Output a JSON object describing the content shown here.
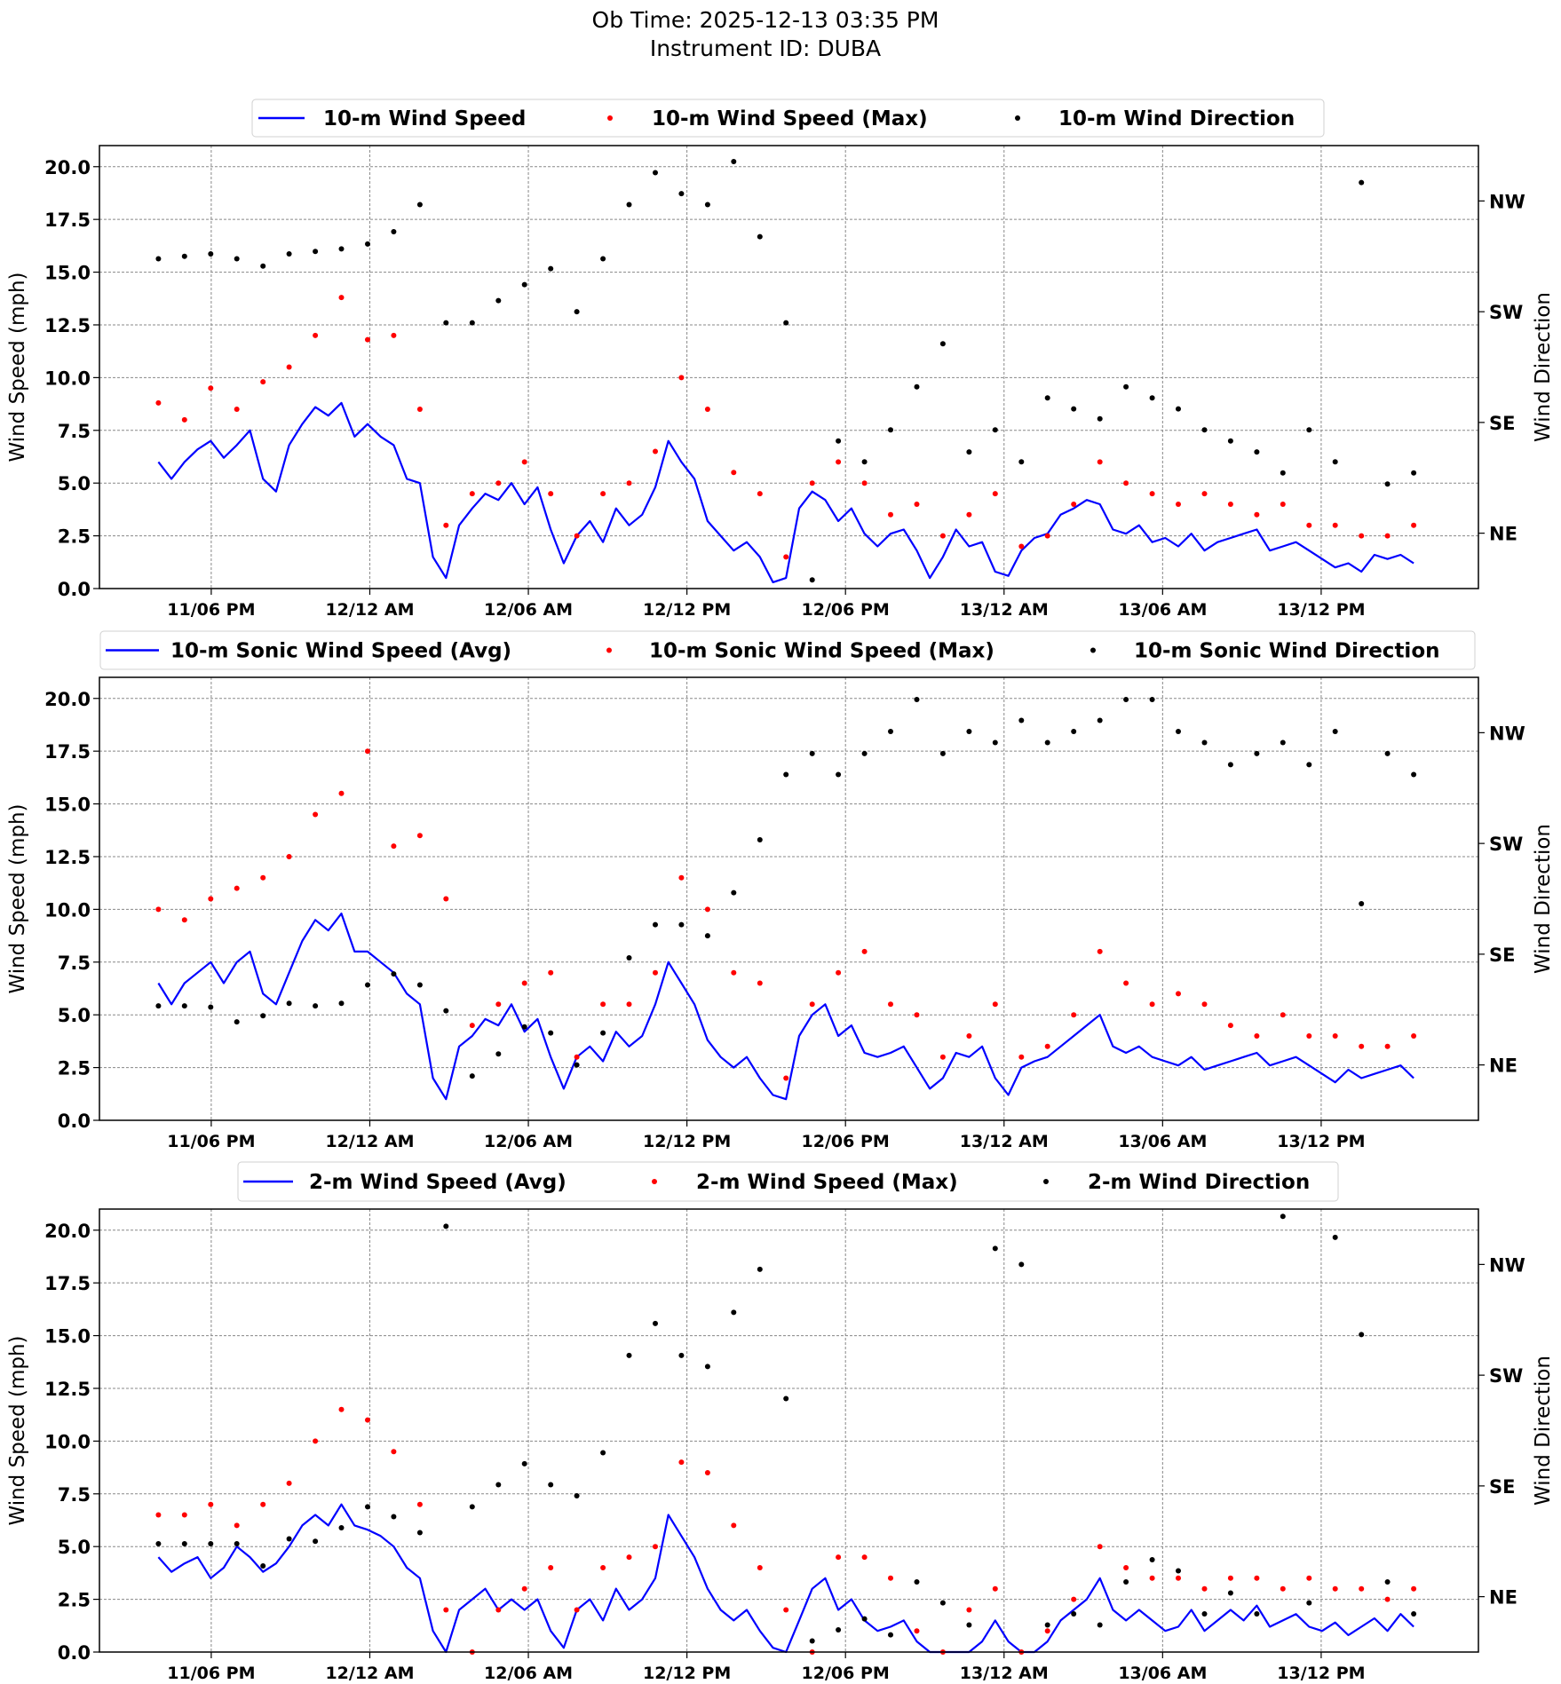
{
  "title": {
    "line1": "Ob Time: 2025-12-13 03:35 PM",
    "line2": "Instrument ID: DUBA"
  },
  "colors": {
    "avg": "#0000ff",
    "max": "#ff0000",
    "direction": "#000000",
    "grid": "#888888"
  },
  "chart_data": [
    {
      "type": "line+scatter",
      "ylabel": "Wind Speed (mph)",
      "y2label": "Wind Direction",
      "ylim": [
        0,
        21
      ],
      "y2lim": [
        0,
        360
      ],
      "yticks": [
        0,
        2.5,
        5,
        7.5,
        10,
        12.5,
        15,
        17.5,
        20
      ],
      "yticklabels": [
        "0.0",
        "2.5",
        "5.0",
        "7.5",
        "10.0",
        "12.5",
        "15.0",
        "17.5",
        "20.0"
      ],
      "y2ticks": [
        45,
        135,
        225,
        315
      ],
      "y2ticklabels": [
        "NE",
        "SE",
        "SW",
        "NW"
      ],
      "xlim_hours": [
        13.77,
        65.95
      ],
      "xticks_hours": [
        18,
        24,
        30,
        36,
        42,
        48,
        54,
        60
      ],
      "xticklabels": [
        "11/06 PM",
        "12/12 AM",
        "12/06 AM",
        "12/12 PM",
        "12/06 PM",
        "13/12 AM",
        "13/06 AM",
        "13/12 PM"
      ],
      "x_start_hours": 16.0,
      "x_end_hours": 63.5,
      "grid": true,
      "legend_placement": "top-center",
      "series": [
        {
          "name": "10-m Wind Speed",
          "kind": "line",
          "axis": "left",
          "values": [
            6.0,
            5.2,
            6.0,
            6.6,
            7.0,
            6.2,
            6.8,
            7.5,
            5.2,
            4.6,
            6.8,
            7.8,
            8.6,
            8.2,
            8.8,
            7.2,
            7.8,
            7.2,
            6.8,
            5.2,
            5.0,
            1.5,
            0.5,
            3.0,
            3.8,
            4.5,
            4.2,
            5.0,
            4.0,
            4.8,
            2.8,
            1.2,
            2.5,
            3.2,
            2.2,
            3.8,
            3.0,
            3.5,
            4.8,
            7.0,
            6.0,
            5.2,
            3.2,
            2.5,
            1.8,
            2.2,
            1.5,
            0.3,
            0.5,
            3.8,
            4.6,
            4.2,
            3.2,
            3.8,
            2.6,
            2.0,
            2.6,
            2.8,
            1.8,
            0.5,
            1.5,
            2.8,
            2.0,
            2.2,
            0.8,
            0.6,
            1.8,
            2.4,
            2.6,
            3.5,
            3.8,
            4.2,
            4.0,
            2.8,
            2.6,
            3.0,
            2.2,
            2.4,
            2.0,
            2.6,
            1.8,
            2.2,
            2.4,
            2.6,
            2.8,
            1.8,
            2.0,
            2.2,
            1.8,
            1.4,
            1.0,
            1.2,
            0.8,
            1.6,
            1.4,
            1.6,
            1.2
          ]
        },
        {
          "name": "10-m Wind Speed (Max)",
          "kind": "scatter",
          "axis": "left",
          "values": [
            8.8,
            8.0,
            9.5,
            8.5,
            9.8,
            10.5,
            12.0,
            13.8,
            11.8,
            12.0,
            8.5,
            3.0,
            4.5,
            5.0,
            6.0,
            4.5,
            2.5,
            4.5,
            5.0,
            6.5,
            10.0,
            8.5,
            5.5,
            4.5,
            1.5,
            5.0,
            6.0,
            5.0,
            3.5,
            4.0,
            2.5,
            3.5,
            4.5,
            2.0,
            2.5,
            4.0,
            6.0,
            5.0,
            4.5,
            4.0,
            4.5,
            4.0,
            3.5,
            4.0,
            3.0,
            3.0,
            2.5,
            2.5,
            3.0
          ]
        },
        {
          "name": "10-m Wind Direction",
          "kind": "scatter",
          "axis": "right",
          "values": [
            268,
            270,
            272,
            268,
            262,
            272,
            274,
            276,
            280,
            290,
            312,
            216,
            216,
            234,
            247,
            260,
            225,
            268,
            312,
            338,
            321,
            312,
            347,
            286,
            216,
            7,
            120,
            103,
            129,
            164,
            199,
            111,
            129,
            103,
            155,
            146,
            138,
            164,
            155,
            146,
            129,
            120,
            111,
            94,
            129,
            103,
            330,
            85,
            94
          ]
        }
      ],
      "legend": [
        "10-m Wind Speed",
        "10-m Wind Speed (Max)",
        "10-m Wind Direction"
      ]
    },
    {
      "type": "line+scatter",
      "ylabel": "Wind Speed (mph)",
      "y2label": "Wind Direction",
      "ylim": [
        0,
        21
      ],
      "y2lim": [
        0,
        360
      ],
      "yticks": [
        0,
        2.5,
        5,
        7.5,
        10,
        12.5,
        15,
        17.5,
        20
      ],
      "yticklabels": [
        "0.0",
        "2.5",
        "5.0",
        "7.5",
        "10.0",
        "12.5",
        "15.0",
        "17.5",
        "20.0"
      ],
      "y2ticks": [
        45,
        135,
        225,
        315
      ],
      "y2ticklabels": [
        "NE",
        "SE",
        "SW",
        "NW"
      ],
      "xlim_hours": [
        13.77,
        65.95
      ],
      "xticks_hours": [
        18,
        24,
        30,
        36,
        42,
        48,
        54,
        60
      ],
      "xticklabels": [
        "11/06 PM",
        "12/12 AM",
        "12/06 AM",
        "12/12 PM",
        "12/06 PM",
        "13/12 AM",
        "13/06 AM",
        "13/12 PM"
      ],
      "x_start_hours": 16.0,
      "x_end_hours": 63.5,
      "grid": true,
      "legend_placement": "top-center",
      "series": [
        {
          "name": "10-m Sonic Wind Speed (Avg)",
          "kind": "line",
          "axis": "left",
          "values": [
            6.5,
            5.5,
            6.5,
            7.0,
            7.5,
            6.5,
            7.5,
            8.0,
            6.0,
            5.5,
            7.0,
            8.5,
            9.5,
            9.0,
            9.8,
            8.0,
            8.0,
            7.5,
            7.0,
            6.0,
            5.5,
            2.0,
            1.0,
            3.5,
            4.0,
            4.8,
            4.5,
            5.5,
            4.2,
            4.8,
            3.0,
            1.5,
            3.0,
            3.5,
            2.8,
            4.2,
            3.5,
            4.0,
            5.5,
            7.5,
            6.5,
            5.5,
            3.8,
            3.0,
            2.5,
            3.0,
            2.0,
            1.2,
            1.0,
            4.0,
            5.0,
            5.5,
            4.0,
            4.5,
            3.2,
            3.0,
            3.2,
            3.5,
            2.5,
            1.5,
            2.0,
            3.2,
            3.0,
            3.5,
            2.0,
            1.2,
            2.5,
            2.8,
            3.0,
            3.5,
            4.0,
            4.5,
            5.0,
            3.5,
            3.2,
            3.5,
            3.0,
            2.8,
            2.6,
            3.0,
            2.4,
            2.6,
            2.8,
            3.0,
            3.2,
            2.6,
            2.8,
            3.0,
            2.6,
            2.2,
            1.8,
            2.4,
            2.0,
            2.2,
            2.4,
            2.6,
            2.0
          ]
        },
        {
          "name": "10-m Sonic Wind Speed (Max)",
          "kind": "scatter",
          "axis": "left",
          "values": [
            10.0,
            9.5,
            10.5,
            11.0,
            11.5,
            12.5,
            14.5,
            15.5,
            17.5,
            13.0,
            13.5,
            10.5,
            4.5,
            5.5,
            6.5,
            7.0,
            3.0,
            5.5,
            5.5,
            7.0,
            11.5,
            10.0,
            7.0,
            6.5,
            2.0,
            5.5,
            7.0,
            8.0,
            5.5,
            5.0,
            3.0,
            4.0,
            5.5,
            3.0,
            3.5,
            5.0,
            8.0,
            6.5,
            5.5,
            6.0,
            5.5,
            4.5,
            4.0,
            5.0,
            4.0,
            4.0,
            3.5,
            3.5,
            4.0
          ]
        },
        {
          "name": "10-m Sonic Wind Direction",
          "kind": "scatter",
          "axis": "right",
          "values": [
            93,
            93,
            92,
            80,
            85,
            95,
            93,
            95,
            110,
            119,
            110,
            89,
            36,
            54,
            76,
            71,
            45,
            71,
            132,
            159,
            159,
            150,
            185,
            228,
            281,
            298,
            281,
            298,
            316,
            342,
            298,
            316,
            307,
            325,
            307,
            316,
            325,
            342,
            342,
            316,
            307,
            289,
            298,
            307,
            289,
            316,
            176,
            298,
            281
          ]
        }
      ],
      "legend": [
        "10-m Sonic Wind Speed (Avg)",
        "10-m Sonic Wind Speed (Max)",
        "10-m Sonic Wind Direction"
      ]
    },
    {
      "type": "line+scatter",
      "ylabel": "Wind Speed (mph)",
      "y2label": "Wind Direction",
      "ylim": [
        0,
        21
      ],
      "y2lim": [
        0,
        360
      ],
      "yticks": [
        0,
        2.5,
        5,
        7.5,
        10,
        12.5,
        15,
        17.5,
        20
      ],
      "yticklabels": [
        "0.0",
        "2.5",
        "5.0",
        "7.5",
        "10.0",
        "12.5",
        "15.0",
        "17.5",
        "20.0"
      ],
      "y2ticks": [
        45,
        135,
        225,
        315
      ],
      "y2ticklabels": [
        "NE",
        "SE",
        "SW",
        "NW"
      ],
      "xlim_hours": [
        13.77,
        65.95
      ],
      "xticks_hours": [
        18,
        24,
        30,
        36,
        42,
        48,
        54,
        60
      ],
      "xticklabels": [
        "11/06 PM",
        "12/12 AM",
        "12/06 AM",
        "12/12 PM",
        "12/06 PM",
        "13/12 AM",
        "13/06 AM",
        "13/12 PM"
      ],
      "x_start_hours": 16.0,
      "x_end_hours": 63.5,
      "grid": true,
      "legend_placement": "top-center",
      "series": [
        {
          "name": "2-m Wind Speed (Avg)",
          "kind": "line",
          "axis": "left",
          "values": [
            4.5,
            3.8,
            4.2,
            4.5,
            3.5,
            4.0,
            5.0,
            4.5,
            3.8,
            4.2,
            5.0,
            6.0,
            6.5,
            6.0,
            7.0,
            6.0,
            5.8,
            5.5,
            5.0,
            4.0,
            3.5,
            1.0,
            0.0,
            2.0,
            2.5,
            3.0,
            2.0,
            2.5,
            2.0,
            2.5,
            1.0,
            0.2,
            2.0,
            2.5,
            1.5,
            3.0,
            2.0,
            2.5,
            3.5,
            6.5,
            5.5,
            4.5,
            3.0,
            2.0,
            1.5,
            2.0,
            1.0,
            0.2,
            0.0,
            1.5,
            3.0,
            3.5,
            2.0,
            2.5,
            1.5,
            1.0,
            1.2,
            1.5,
            0.5,
            0.0,
            0.0,
            0.0,
            0.0,
            0.5,
            1.5,
            0.5,
            0.0,
            0.0,
            0.5,
            1.5,
            2.0,
            2.5,
            3.5,
            2.0,
            1.5,
            2.0,
            1.5,
            1.0,
            1.2,
            2.0,
            1.0,
            1.5,
            2.0,
            1.5,
            2.2,
            1.2,
            1.5,
            1.8,
            1.2,
            1.0,
            1.4,
            0.8,
            1.2,
            1.6,
            1.0,
            1.8,
            1.2
          ]
        },
        {
          "name": "2-m Wind Speed (Max)",
          "kind": "scatter",
          "axis": "left",
          "values": [
            6.5,
            6.5,
            7.0,
            6.0,
            7.0,
            8.0,
            10.0,
            11.5,
            11.0,
            9.5,
            7.0,
            2.0,
            0.0,
            2.0,
            3.0,
            4.0,
            2.0,
            4.0,
            4.5,
            5.0,
            9.0,
            8.5,
            6.0,
            4.0,
            2.0,
            0.0,
            4.5,
            4.5,
            3.5,
            1.0,
            0.0,
            2.0,
            3.0,
            0.0,
            1.0,
            2.5,
            5.0,
            4.0,
            3.5,
            3.5,
            3.0,
            3.5,
            3.5,
            3.0,
            3.5,
            3.0,
            3.0,
            2.5,
            3.0
          ]
        },
        {
          "name": "2-m Wind Direction",
          "kind": "scatter",
          "axis": "right",
          "values": [
            88,
            88,
            88,
            88,
            70,
            92,
            90,
            101,
            118,
            110,
            97,
            346,
            118,
            136,
            153,
            136,
            127,
            162,
            241,
            267,
            241,
            232,
            276,
            311,
            206,
            9,
            18,
            27,
            14,
            57,
            40,
            22,
            328,
            315,
            22,
            31,
            22,
            57,
            75,
            66,
            31,
            48,
            31,
            354,
            40,
            337,
            258,
            57,
            31
          ]
        }
      ],
      "legend": [
        "2-m Wind Speed (Avg)",
        "2-m Wind Speed (Max)",
        "2-m Wind Direction"
      ]
    }
  ]
}
